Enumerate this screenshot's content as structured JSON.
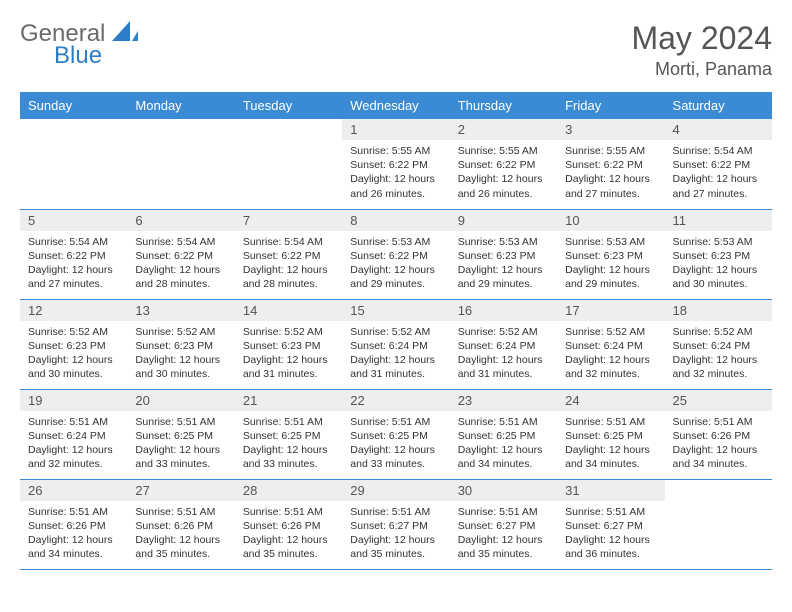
{
  "logo": {
    "word1": "General",
    "word2": "Blue"
  },
  "title": "May 2024",
  "location": "Morti, Panama",
  "colors": {
    "headerBg": "#3b8bd4",
    "headerText": "#ffffff",
    "dayBarBg": "#eceeef",
    "rowBorder": "#3b8bd4",
    "logoGray": "#6b6b6b",
    "logoBlue": "#2d7dc7"
  },
  "dayNames": [
    "Sunday",
    "Monday",
    "Tuesday",
    "Wednesday",
    "Thursday",
    "Friday",
    "Saturday"
  ],
  "weeks": [
    [
      null,
      null,
      null,
      {
        "n": "1",
        "sr": "5:55 AM",
        "ss": "6:22 PM",
        "dl": "12 hours and 26 minutes."
      },
      {
        "n": "2",
        "sr": "5:55 AM",
        "ss": "6:22 PM",
        "dl": "12 hours and 26 minutes."
      },
      {
        "n": "3",
        "sr": "5:55 AM",
        "ss": "6:22 PM",
        "dl": "12 hours and 27 minutes."
      },
      {
        "n": "4",
        "sr": "5:54 AM",
        "ss": "6:22 PM",
        "dl": "12 hours and 27 minutes."
      }
    ],
    [
      {
        "n": "5",
        "sr": "5:54 AM",
        "ss": "6:22 PM",
        "dl": "12 hours and 27 minutes."
      },
      {
        "n": "6",
        "sr": "5:54 AM",
        "ss": "6:22 PM",
        "dl": "12 hours and 28 minutes."
      },
      {
        "n": "7",
        "sr": "5:54 AM",
        "ss": "6:22 PM",
        "dl": "12 hours and 28 minutes."
      },
      {
        "n": "8",
        "sr": "5:53 AM",
        "ss": "6:22 PM",
        "dl": "12 hours and 29 minutes."
      },
      {
        "n": "9",
        "sr": "5:53 AM",
        "ss": "6:23 PM",
        "dl": "12 hours and 29 minutes."
      },
      {
        "n": "10",
        "sr": "5:53 AM",
        "ss": "6:23 PM",
        "dl": "12 hours and 29 minutes."
      },
      {
        "n": "11",
        "sr": "5:53 AM",
        "ss": "6:23 PM",
        "dl": "12 hours and 30 minutes."
      }
    ],
    [
      {
        "n": "12",
        "sr": "5:52 AM",
        "ss": "6:23 PM",
        "dl": "12 hours and 30 minutes."
      },
      {
        "n": "13",
        "sr": "5:52 AM",
        "ss": "6:23 PM",
        "dl": "12 hours and 30 minutes."
      },
      {
        "n": "14",
        "sr": "5:52 AM",
        "ss": "6:23 PM",
        "dl": "12 hours and 31 minutes."
      },
      {
        "n": "15",
        "sr": "5:52 AM",
        "ss": "6:24 PM",
        "dl": "12 hours and 31 minutes."
      },
      {
        "n": "16",
        "sr": "5:52 AM",
        "ss": "6:24 PM",
        "dl": "12 hours and 31 minutes."
      },
      {
        "n": "17",
        "sr": "5:52 AM",
        "ss": "6:24 PM",
        "dl": "12 hours and 32 minutes."
      },
      {
        "n": "18",
        "sr": "5:52 AM",
        "ss": "6:24 PM",
        "dl": "12 hours and 32 minutes."
      }
    ],
    [
      {
        "n": "19",
        "sr": "5:51 AM",
        "ss": "6:24 PM",
        "dl": "12 hours and 32 minutes."
      },
      {
        "n": "20",
        "sr": "5:51 AM",
        "ss": "6:25 PM",
        "dl": "12 hours and 33 minutes."
      },
      {
        "n": "21",
        "sr": "5:51 AM",
        "ss": "6:25 PM",
        "dl": "12 hours and 33 minutes."
      },
      {
        "n": "22",
        "sr": "5:51 AM",
        "ss": "6:25 PM",
        "dl": "12 hours and 33 minutes."
      },
      {
        "n": "23",
        "sr": "5:51 AM",
        "ss": "6:25 PM",
        "dl": "12 hours and 34 minutes."
      },
      {
        "n": "24",
        "sr": "5:51 AM",
        "ss": "6:25 PM",
        "dl": "12 hours and 34 minutes."
      },
      {
        "n": "25",
        "sr": "5:51 AM",
        "ss": "6:26 PM",
        "dl": "12 hours and 34 minutes."
      }
    ],
    [
      {
        "n": "26",
        "sr": "5:51 AM",
        "ss": "6:26 PM",
        "dl": "12 hours and 34 minutes."
      },
      {
        "n": "27",
        "sr": "5:51 AM",
        "ss": "6:26 PM",
        "dl": "12 hours and 35 minutes."
      },
      {
        "n": "28",
        "sr": "5:51 AM",
        "ss": "6:26 PM",
        "dl": "12 hours and 35 minutes."
      },
      {
        "n": "29",
        "sr": "5:51 AM",
        "ss": "6:27 PM",
        "dl": "12 hours and 35 minutes."
      },
      {
        "n": "30",
        "sr": "5:51 AM",
        "ss": "6:27 PM",
        "dl": "12 hours and 35 minutes."
      },
      {
        "n": "31",
        "sr": "5:51 AM",
        "ss": "6:27 PM",
        "dl": "12 hours and 36 minutes."
      },
      null
    ]
  ],
  "labels": {
    "sunrise": "Sunrise:",
    "sunset": "Sunset:",
    "daylight": "Daylight:"
  }
}
